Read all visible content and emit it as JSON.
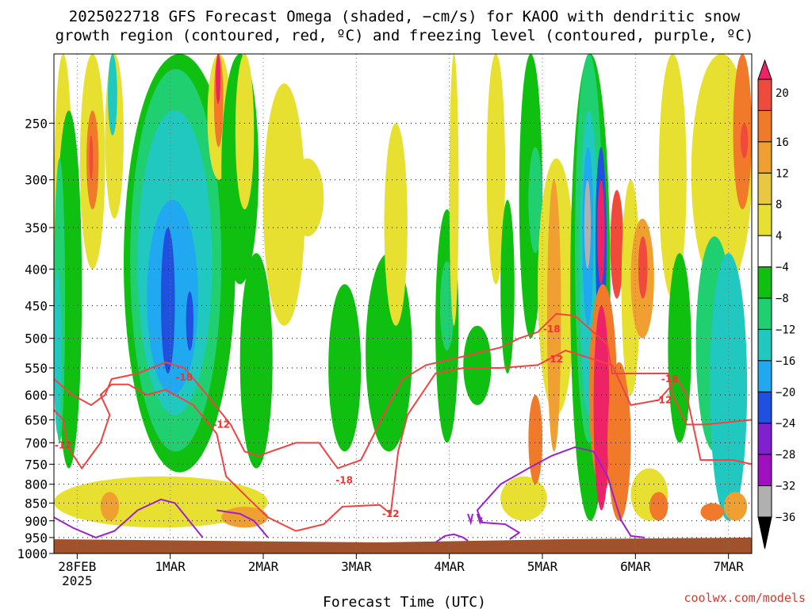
{
  "title_line1": "2025022718 GFS Forecast Omega (shaded, −cm/s) for KAOO with dendritic snow",
  "title_line2": "growth region (contoured, red, ºC) and freezing level (contoured, purple, ºC)",
  "xlabel": "Forecast Time (UTC)",
  "watermark": "coolwx.com/models",
  "chart_data": {
    "type": "heatmap",
    "title": "2025022718 GFS Forecast Omega (shaded, −cm/s) for KAOO with dendritic snow growth region (contoured, red, ºC) and freezing level (contoured, purple, ºC)",
    "xlabel": "Forecast Time (UTC)",
    "ylabel": "",
    "x_ticks": [
      {
        "t": 0.25,
        "label": "28FEB",
        "sub": "2025"
      },
      {
        "t": 1.25,
        "label": "1MAR"
      },
      {
        "t": 2.25,
        "label": "2MAR"
      },
      {
        "t": 3.25,
        "label": "3MAR"
      },
      {
        "t": 4.25,
        "label": "4MAR"
      },
      {
        "t": 5.25,
        "label": "5MAR"
      },
      {
        "t": 6.25,
        "label": "6MAR"
      },
      {
        "t": 7.25,
        "label": "7MAR"
      }
    ],
    "x_range_days": [
      0,
      7.5
    ],
    "y_ticks": [
      250,
      300,
      350,
      400,
      450,
      500,
      550,
      600,
      650,
      700,
      750,
      800,
      850,
      900,
      950,
      1000
    ],
    "y_range_hpa": [
      200,
      1000
    ],
    "y_scale": "log",
    "colorbar": {
      "labels": [
        "20",
        "16",
        "12",
        "8",
        "4",
        "−4",
        "−8",
        "−12",
        "−16",
        "−20",
        "−24",
        "−28",
        "−32",
        "−36"
      ],
      "colors": [
        "#ee2266",
        "#f04a3c",
        "#f07a2a",
        "#f0a030",
        "#e8c840",
        "#e8e030",
        "#ffffff",
        "#10c010",
        "#20d070",
        "#20c8c0",
        "#20a8f0",
        "#2050e0",
        "#8020d0",
        "#a010c0",
        "#b0b0b0",
        "#000000"
      ],
      "top_arrow": "#ee2266",
      "bottom_arrow": "#000000"
    },
    "contour_labels": [
      {
        "text": "-18",
        "x_day": 1.4,
        "p": 567
      },
      {
        "text": "-12",
        "x_day": 1.8,
        "p": 660
      },
      {
        "text": "-12",
        "x_day": 0.1,
        "p": 706
      },
      {
        "text": "-18",
        "x_day": 3.12,
        "p": 790
      },
      {
        "text": "-12",
        "x_day": 3.62,
        "p": 880
      },
      {
        "text": "-18",
        "x_day": 5.35,
        "p": 485
      },
      {
        "text": "-12",
        "x_day": 5.38,
        "p": 535
      },
      {
        "text": "-18",
        "x_day": 6.62,
        "p": 570
      },
      {
        "text": "-12",
        "x_day": 6.55,
        "p": 610
      }
    ],
    "terrain_color": "#a0522d",
    "dendritic_color": "#ee4444",
    "freezing_color": "#9922cc",
    "grid": true
  }
}
